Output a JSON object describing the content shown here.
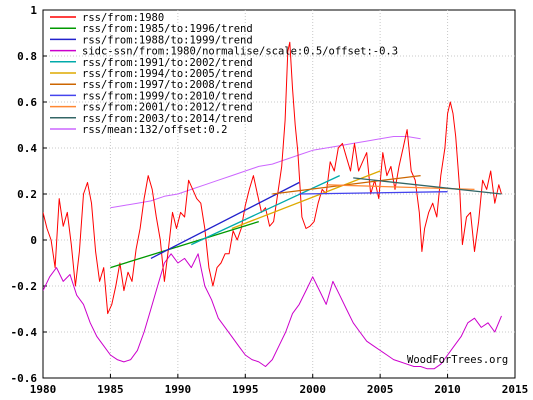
{
  "chart_data": {
    "type": "line",
    "title": "",
    "xlabel": "",
    "ylabel": "",
    "xlim": [
      1980,
      2015
    ],
    "ylim": [
      -0.6,
      1.0
    ],
    "x_ticks": [
      "1980",
      "1985",
      "1990",
      "1995",
      "2000",
      "2005",
      "2010",
      "2015"
    ],
    "y_ticks": [
      "1",
      "0.8",
      "0.6",
      "0.4",
      "0.2",
      "0",
      "-0.2",
      "-0.4",
      "-0.6"
    ],
    "grid": true,
    "legend_position": "top-left",
    "watermark": "WoodForTrees.org",
    "series": [
      {
        "name": "rss/from:1980",
        "color": "#ff0000",
        "kind": "monthly",
        "points": [
          [
            1980.0,
            0.12
          ],
          [
            1980.3,
            0.05
          ],
          [
            1980.6,
            0.0
          ],
          [
            1980.9,
            -0.12
          ],
          [
            1981.2,
            0.18
          ],
          [
            1981.5,
            0.06
          ],
          [
            1981.8,
            0.12
          ],
          [
            1982.1,
            -0.02
          ],
          [
            1982.4,
            -0.2
          ],
          [
            1982.7,
            -0.05
          ],
          [
            1983.0,
            0.2
          ],
          [
            1983.3,
            0.25
          ],
          [
            1983.6,
            0.16
          ],
          [
            1983.9,
            -0.05
          ],
          [
            1984.2,
            -0.18
          ],
          [
            1984.5,
            -0.12
          ],
          [
            1984.8,
            -0.32
          ],
          [
            1985.1,
            -0.28
          ],
          [
            1985.4,
            -0.2
          ],
          [
            1985.7,
            -0.1
          ],
          [
            1986.0,
            -0.22
          ],
          [
            1986.3,
            -0.14
          ],
          [
            1986.6,
            -0.18
          ],
          [
            1986.9,
            -0.04
          ],
          [
            1987.2,
            0.05
          ],
          [
            1987.5,
            0.18
          ],
          [
            1987.8,
            0.28
          ],
          [
            1988.1,
            0.22
          ],
          [
            1988.4,
            0.1
          ],
          [
            1988.7,
            0.0
          ],
          [
            1989.0,
            -0.18
          ],
          [
            1989.3,
            -0.04
          ],
          [
            1989.6,
            0.12
          ],
          [
            1989.9,
            0.05
          ],
          [
            1990.2,
            0.12
          ],
          [
            1990.5,
            0.1
          ],
          [
            1990.8,
            0.26
          ],
          [
            1991.1,
            0.22
          ],
          [
            1991.4,
            0.18
          ],
          [
            1991.7,
            0.16
          ],
          [
            1992.0,
            0.05
          ],
          [
            1992.3,
            -0.12
          ],
          [
            1992.6,
            -0.2
          ],
          [
            1992.9,
            -0.12
          ],
          [
            1993.2,
            -0.1
          ],
          [
            1993.5,
            -0.06
          ],
          [
            1993.8,
            -0.06
          ],
          [
            1994.1,
            0.04
          ],
          [
            1994.4,
            0.0
          ],
          [
            1994.7,
            0.05
          ],
          [
            1995.0,
            0.15
          ],
          [
            1995.3,
            0.22
          ],
          [
            1995.6,
            0.28
          ],
          [
            1995.9,
            0.2
          ],
          [
            1996.2,
            0.12
          ],
          [
            1996.5,
            0.14
          ],
          [
            1996.8,
            0.06
          ],
          [
            1997.1,
            0.08
          ],
          [
            1997.4,
            0.2
          ],
          [
            1997.7,
            0.32
          ],
          [
            1997.95,
            0.52
          ],
          [
            1998.15,
            0.82
          ],
          [
            1998.3,
            0.86
          ],
          [
            1998.5,
            0.66
          ],
          [
            1998.7,
            0.5
          ],
          [
            1998.9,
            0.38
          ],
          [
            1999.2,
            0.1
          ],
          [
            1999.5,
            0.05
          ],
          [
            1999.8,
            0.06
          ],
          [
            2000.1,
            0.08
          ],
          [
            2000.4,
            0.16
          ],
          [
            2000.7,
            0.22
          ],
          [
            2001.0,
            0.2
          ],
          [
            2001.3,
            0.34
          ],
          [
            2001.6,
            0.3
          ],
          [
            2001.9,
            0.4
          ],
          [
            2002.2,
            0.42
          ],
          [
            2002.5,
            0.36
          ],
          [
            2002.8,
            0.3
          ],
          [
            2003.1,
            0.42
          ],
          [
            2003.4,
            0.3
          ],
          [
            2003.7,
            0.34
          ],
          [
            2004.0,
            0.38
          ],
          [
            2004.3,
            0.2
          ],
          [
            2004.6,
            0.26
          ],
          [
            2004.9,
            0.18
          ],
          [
            2005.2,
            0.38
          ],
          [
            2005.5,
            0.28
          ],
          [
            2005.8,
            0.32
          ],
          [
            2006.1,
            0.22
          ],
          [
            2006.4,
            0.32
          ],
          [
            2006.7,
            0.4
          ],
          [
            2007.0,
            0.48
          ],
          [
            2007.3,
            0.3
          ],
          [
            2007.6,
            0.26
          ],
          [
            2007.9,
            0.12
          ],
          [
            2008.1,
            -0.05
          ],
          [
            2008.3,
            0.05
          ],
          [
            2008.6,
            0.12
          ],
          [
            2008.9,
            0.16
          ],
          [
            2009.2,
            0.1
          ],
          [
            2009.5,
            0.28
          ],
          [
            2009.8,
            0.4
          ],
          [
            2010.0,
            0.55
          ],
          [
            2010.2,
            0.6
          ],
          [
            2010.4,
            0.55
          ],
          [
            2010.6,
            0.45
          ],
          [
            2010.9,
            0.22
          ],
          [
            2011.1,
            -0.02
          ],
          [
            2011.4,
            0.1
          ],
          [
            2011.7,
            0.12
          ],
          [
            2012.0,
            -0.05
          ],
          [
            2012.3,
            0.08
          ],
          [
            2012.6,
            0.26
          ],
          [
            2012.9,
            0.22
          ],
          [
            2013.2,
            0.3
          ],
          [
            2013.5,
            0.16
          ],
          [
            2013.8,
            0.24
          ],
          [
            2014.0,
            0.2
          ]
        ]
      },
      {
        "name": "rss/from:1985/to:1996/trend",
        "color": "#009900",
        "kind": "trend",
        "points": [
          [
            1985.0,
            -0.12
          ],
          [
            1996.0,
            0.08
          ]
        ]
      },
      {
        "name": "rss/from:1988/to:1999/trend",
        "color": "#2222cc",
        "kind": "trend",
        "points": [
          [
            1988.0,
            -0.08
          ],
          [
            1999.0,
            0.25
          ]
        ]
      },
      {
        "name": "sidc-ssn/from:1980/normalise/scale:0.5/offset:-0.3",
        "color": "#cc00cc",
        "kind": "monthly",
        "points": [
          [
            1980.0,
            -0.22
          ],
          [
            1980.5,
            -0.16
          ],
          [
            1981.0,
            -0.12
          ],
          [
            1981.5,
            -0.18
          ],
          [
            1982.0,
            -0.15
          ],
          [
            1982.5,
            -0.24
          ],
          [
            1983.0,
            -0.28
          ],
          [
            1983.5,
            -0.36
          ],
          [
            1984.0,
            -0.42
          ],
          [
            1984.5,
            -0.46
          ],
          [
            1985.0,
            -0.5
          ],
          [
            1985.5,
            -0.52
          ],
          [
            1986.0,
            -0.53
          ],
          [
            1986.5,
            -0.52
          ],
          [
            1987.0,
            -0.48
          ],
          [
            1987.5,
            -0.4
          ],
          [
            1988.0,
            -0.3
          ],
          [
            1988.5,
            -0.2
          ],
          [
            1989.0,
            -0.1
          ],
          [
            1989.5,
            -0.06
          ],
          [
            1990.0,
            -0.1
          ],
          [
            1990.5,
            -0.08
          ],
          [
            1991.0,
            -0.12
          ],
          [
            1991.5,
            -0.06
          ],
          [
            1992.0,
            -0.2
          ],
          [
            1992.5,
            -0.26
          ],
          [
            1993.0,
            -0.34
          ],
          [
            1993.5,
            -0.38
          ],
          [
            1994.0,
            -0.42
          ],
          [
            1994.5,
            -0.46
          ],
          [
            1995.0,
            -0.5
          ],
          [
            1995.5,
            -0.52
          ],
          [
            1996.0,
            -0.53
          ],
          [
            1996.5,
            -0.55
          ],
          [
            1997.0,
            -0.52
          ],
          [
            1997.5,
            -0.46
          ],
          [
            1998.0,
            -0.4
          ],
          [
            1998.5,
            -0.32
          ],
          [
            1999.0,
            -0.28
          ],
          [
            1999.5,
            -0.22
          ],
          [
            2000.0,
            -0.16
          ],
          [
            2000.5,
            -0.22
          ],
          [
            2001.0,
            -0.28
          ],
          [
            2001.5,
            -0.18
          ],
          [
            2002.0,
            -0.24
          ],
          [
            2002.5,
            -0.3
          ],
          [
            2003.0,
            -0.36
          ],
          [
            2003.5,
            -0.4
          ],
          [
            2004.0,
            -0.44
          ],
          [
            2004.5,
            -0.46
          ],
          [
            2005.0,
            -0.48
          ],
          [
            2005.5,
            -0.5
          ],
          [
            2006.0,
            -0.52
          ],
          [
            2006.5,
            -0.53
          ],
          [
            2007.0,
            -0.54
          ],
          [
            2007.5,
            -0.55
          ],
          [
            2008.0,
            -0.55
          ],
          [
            2008.5,
            -0.56
          ],
          [
            2009.0,
            -0.56
          ],
          [
            2009.5,
            -0.54
          ],
          [
            2010.0,
            -0.5
          ],
          [
            2010.5,
            -0.46
          ],
          [
            2011.0,
            -0.42
          ],
          [
            2011.5,
            -0.36
          ],
          [
            2012.0,
            -0.34
          ],
          [
            2012.5,
            -0.38
          ],
          [
            2013.0,
            -0.36
          ],
          [
            2013.5,
            -0.4
          ],
          [
            2014.0,
            -0.33
          ]
        ]
      },
      {
        "name": "rss/from:1991/to:2002/trend",
        "color": "#00aaaa",
        "kind": "trend",
        "points": [
          [
            1991.0,
            -0.02
          ],
          [
            2002.0,
            0.28
          ]
        ]
      },
      {
        "name": "rss/from:1994/to:2005/trend",
        "color": "#ddaa00",
        "kind": "trend",
        "points": [
          [
            1994.0,
            0.05
          ],
          [
            2005.0,
            0.3
          ]
        ]
      },
      {
        "name": "rss/from:1997/to:2008/trend",
        "color": "#cc6600",
        "kind": "trend",
        "points": [
          [
            1997.0,
            0.2
          ],
          [
            2008.0,
            0.28
          ]
        ]
      },
      {
        "name": "rss/from:1999/to:2010/trend",
        "color": "#4444ee",
        "kind": "trend",
        "points": [
          [
            1999.0,
            0.2
          ],
          [
            2010.0,
            0.21
          ]
        ]
      },
      {
        "name": "rss/from:2001/to:2012/trend",
        "color": "#ff8833",
        "kind": "trend",
        "points": [
          [
            2001.0,
            0.24
          ],
          [
            2012.0,
            0.22
          ]
        ]
      },
      {
        "name": "rss/from:2003/to:2014/trend",
        "color": "#336666",
        "kind": "trend",
        "points": [
          [
            2003.0,
            0.27
          ],
          [
            2014.0,
            0.2
          ]
        ]
      },
      {
        "name": "rss/mean:132/offset:0.2",
        "color": "#cc66ff",
        "kind": "mean",
        "points": [
          [
            1985.0,
            0.14
          ],
          [
            1986.0,
            0.15
          ],
          [
            1987.0,
            0.16
          ],
          [
            1988.0,
            0.17
          ],
          [
            1989.0,
            0.19
          ],
          [
            1990.0,
            0.2
          ],
          [
            1991.0,
            0.22
          ],
          [
            1992.0,
            0.24
          ],
          [
            1993.0,
            0.26
          ],
          [
            1994.0,
            0.28
          ],
          [
            1995.0,
            0.3
          ],
          [
            1996.0,
            0.32
          ],
          [
            1997.0,
            0.33
          ],
          [
            1998.0,
            0.35
          ],
          [
            1999.0,
            0.37
          ],
          [
            2000.0,
            0.39
          ],
          [
            2001.0,
            0.4
          ],
          [
            2002.0,
            0.41
          ],
          [
            2003.0,
            0.42
          ],
          [
            2004.0,
            0.43
          ],
          [
            2005.0,
            0.44
          ],
          [
            2006.0,
            0.45
          ],
          [
            2007.0,
            0.45
          ],
          [
            2008.0,
            0.44
          ]
        ]
      }
    ]
  }
}
